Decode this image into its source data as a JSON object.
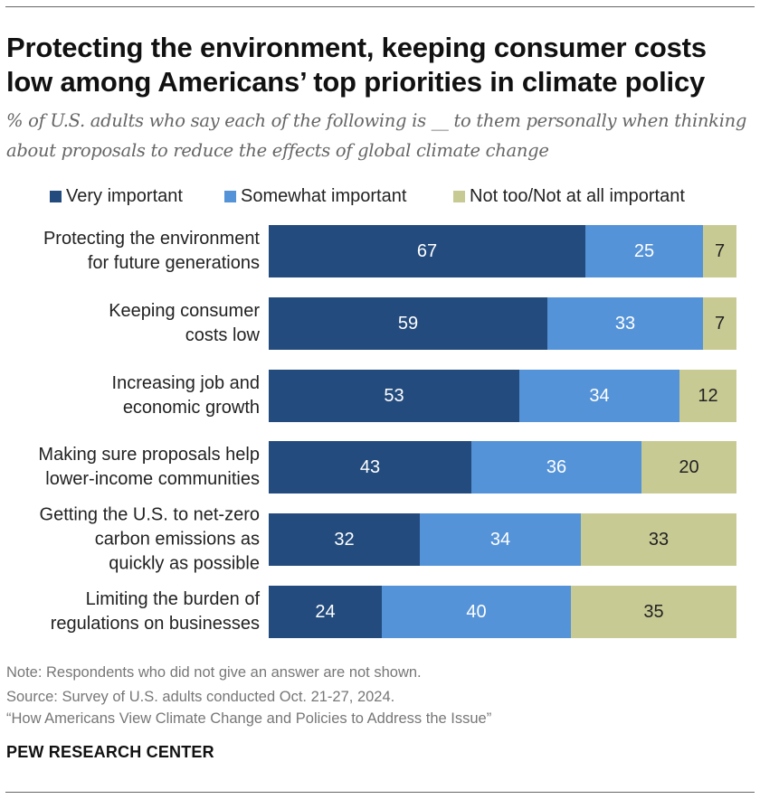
{
  "title": "Protecting the environment, keeping consumer costs low among Americans’ top priorities in climate policy",
  "subtitle": "% of U.S. adults who say each of the following is __ to them personally when thinking about proposals to reduce the effects of global climate change",
  "colors": {
    "very": "#234b7d",
    "somewhat": "#5593d8",
    "not": "#c8ca94"
  },
  "legend": {
    "very": "Very important",
    "somewhat": "Somewhat important",
    "not": "Not too/Not at all important"
  },
  "chart_data": {
    "type": "bar",
    "orientation": "horizontal",
    "stacked": true,
    "title": "Protecting the environment, keeping consumer costs low among Americans’ top priorities in climate policy",
    "categories": [
      [
        "Protecting the environment",
        "for future generations"
      ],
      [
        "Keeping consumer",
        "costs low"
      ],
      [
        "Increasing job and",
        "economic growth"
      ],
      [
        "Making sure proposals help",
        "lower-income communities"
      ],
      [
        "Getting the U.S. to net-zero",
        "carbon emissions as",
        "quickly as possible"
      ],
      [
        "Limiting the burden of",
        "regulations on businesses"
      ]
    ],
    "series": [
      {
        "key": "very",
        "name": "Very important",
        "values": [
          67,
          59,
          53,
          43,
          32,
          24
        ]
      },
      {
        "key": "somewhat",
        "name": "Somewhat important",
        "values": [
          25,
          33,
          34,
          36,
          34,
          40
        ]
      },
      {
        "key": "not",
        "name": "Not too/Not at all important",
        "values": [
          7,
          7,
          12,
          20,
          33,
          35
        ]
      }
    ],
    "xlim": [
      0,
      100
    ],
    "xlabel": "",
    "ylabel": ""
  },
  "notes": {
    "note": "Note: Respondents who did not give an answer are not shown.",
    "source": "Source: Survey of U.S. adults conducted Oct. 21-27, 2024.",
    "report": "“How Americans View Climate Change and Policies to Address the Issue”"
  },
  "brand": "PEW RESEARCH CENTER"
}
